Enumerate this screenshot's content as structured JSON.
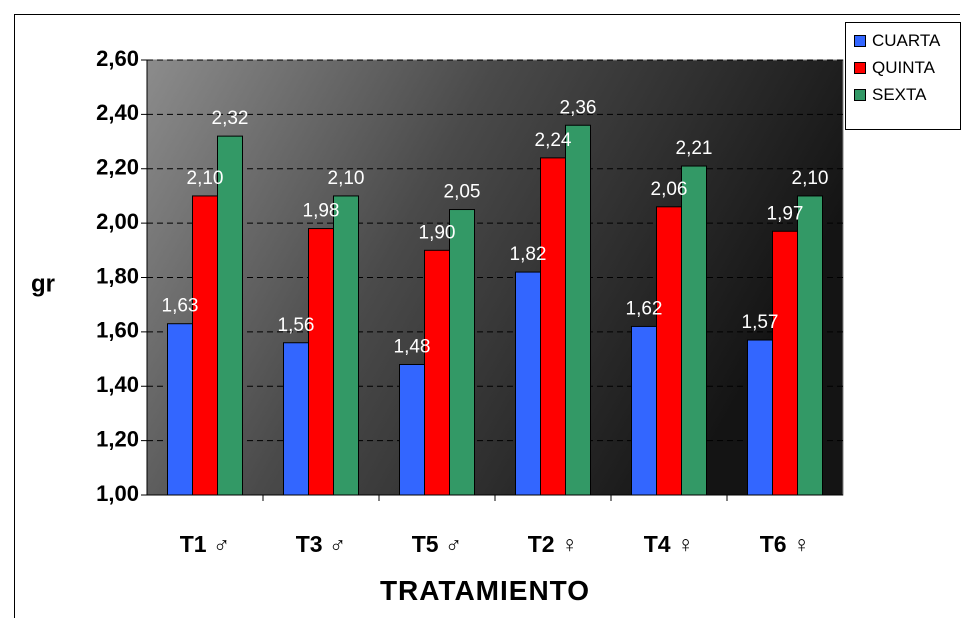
{
  "chart_data": {
    "type": "bar",
    "categories": [
      "T1 ♂",
      "T3 ♂",
      "T5 ♂",
      "T2 ♀",
      "T4 ♀",
      "T6 ♀"
    ],
    "series": [
      {
        "name": "CUARTA",
        "color": "#3366ff",
        "values": [
          1.63,
          1.56,
          1.48,
          1.82,
          1.62,
          1.57
        ],
        "labels": [
          "1,63",
          "1,56",
          "1,48",
          "1,82",
          "1,62",
          "1,57"
        ]
      },
      {
        "name": "QUINTA",
        "color": "#ff0000",
        "values": [
          2.1,
          1.98,
          1.9,
          2.24,
          2.06,
          1.97
        ],
        "labels": [
          "2,10",
          "1,98",
          "1,90",
          "2,24",
          "2,06",
          "1,97"
        ]
      },
      {
        "name": "SEXTA",
        "color": "#339966",
        "values": [
          2.32,
          2.1,
          2.05,
          2.36,
          2.21,
          2.1
        ],
        "labels": [
          "2,32",
          "2,10",
          "2,05",
          "2,36",
          "2,21",
          "2,10"
        ]
      }
    ],
    "xlabel": "TRATAMIENTO",
    "ylabel": "gr",
    "ylim": [
      1.0,
      2.6
    ],
    "yticks": [
      1.0,
      1.2,
      1.4,
      1.6,
      1.8,
      2.0,
      2.2,
      2.4,
      2.6
    ],
    "ytick_labels": [
      "1,00",
      "1,20",
      "1,40",
      "1,60",
      "1,80",
      "2,00",
      "2,20",
      "2,40",
      "2,60"
    ],
    "grid": "horizontal dashed",
    "legend_position": "top-right"
  }
}
